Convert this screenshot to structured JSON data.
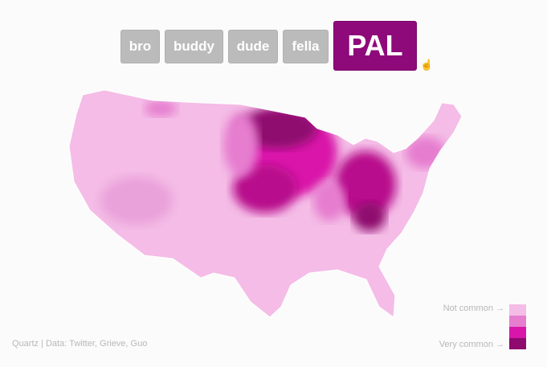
{
  "buttons": [
    {
      "label": "bro",
      "active": false
    },
    {
      "label": "buddy",
      "active": false
    },
    {
      "label": "dude",
      "active": false
    },
    {
      "label": "fella",
      "active": false
    },
    {
      "label": "PAL",
      "active": true
    }
  ],
  "credit": "Quartz | Data: Twitter, Grieve, Guo",
  "legend": {
    "top_label": "Not common →",
    "bottom_label": "Very common →",
    "colors": [
      "#f4bce6",
      "#e67dcf",
      "#d916a9",
      "#8e0a6e"
    ]
  },
  "accent": "#8e0a7a",
  "cursor_icon": "hand-pointer-icon"
}
